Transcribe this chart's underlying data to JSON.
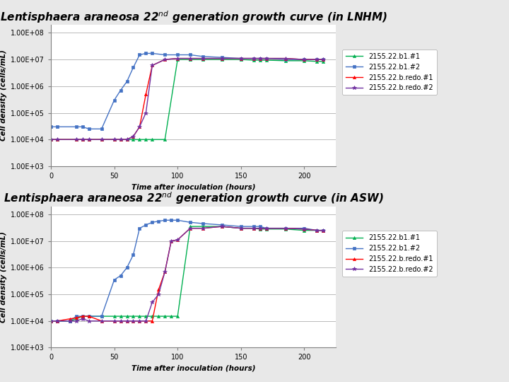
{
  "title1": "Lentisphaera araneosa 22nd generation growth curve (in LNHM)",
  "title2": "Lentisphaera araneosa 22nd generation growth curve (in ASW)",
  "xlabel": "Time after inoculation (hours)",
  "ylabel": "Cell density (cells/mL)",
  "legend_labels": [
    "2155.22.b1.#1",
    "2155.22.b1.#2",
    "2155.22.b.redo.#1",
    "2155.22.b.redo.#2"
  ],
  "colors": [
    "#00b050",
    "#4472c4",
    "#ff0000",
    "#7030a0"
  ],
  "markers": [
    "^",
    "s",
    "^",
    "*"
  ],
  "markersize": [
    3,
    3,
    3,
    4
  ],
  "lnhm": {
    "time": [
      0,
      5,
      20,
      25,
      30,
      40,
      50,
      55,
      60,
      65,
      70,
      75,
      80,
      90,
      100,
      110,
      120,
      135,
      150,
      160,
      165,
      170,
      185,
      200,
      210,
      215
    ],
    "s1": [
      10000.0,
      10000.0,
      10000.0,
      10000.0,
      10000.0,
      10000.0,
      10000.0,
      10000.0,
      10000.0,
      10000.0,
      10000.0,
      10000.0,
      10000.0,
      10000.0,
      10000000.0,
      10000000.0,
      10000000.0,
      10000000.0,
      10000000.0,
      9500000.0,
      9500000.0,
      9500000.0,
      9000000.0,
      9000000.0,
      8500000.0,
      8500000.0
    ],
    "s2": [
      30000.0,
      30000.0,
      30000.0,
      30000.0,
      25000.0,
      25000.0,
      300000.0,
      700000.0,
      1500000.0,
      5000000.0,
      15000000.0,
      17000000.0,
      17000000.0,
      15000000.0,
      15000000.0,
      15000000.0,
      13000000.0,
      12000000.0,
      11000000.0,
      11000000.0,
      11000000.0,
      11000000.0,
      10000000.0,
      10000000.0,
      10000000.0,
      10000000.0
    ],
    "s3": [
      10000.0,
      10000.0,
      10000.0,
      10000.0,
      10000.0,
      10000.0,
      10000.0,
      10000.0,
      10000.0,
      13000.0,
      30000.0,
      500000.0,
      6000000.0,
      10000000.0,
      11000000.0,
      11000000.0,
      11000000.0,
      11000000.0,
      11000000.0,
      11000000.0,
      11000000.0,
      11000000.0,
      11000000.0,
      10000000.0,
      10000000.0,
      10000000.0
    ],
    "s4": [
      10000.0,
      10000.0,
      10000.0,
      10000.0,
      10000.0,
      10000.0,
      10000.0,
      10000.0,
      10000.0,
      13000.0,
      30000.0,
      100000.0,
      6000000.0,
      10000000.0,
      11000000.0,
      11000000.0,
      11000000.0,
      11000000.0,
      11000000.0,
      11000000.0,
      11000000.0,
      11000000.0,
      11000000.0,
      10000000.0,
      10000000.0,
      10000000.0
    ]
  },
  "asw": {
    "time": [
      0,
      5,
      15,
      20,
      25,
      30,
      40,
      50,
      55,
      60,
      65,
      70,
      75,
      80,
      85,
      90,
      95,
      100,
      110,
      120,
      135,
      150,
      160,
      165,
      170,
      185,
      200,
      210,
      215
    ],
    "s1": [
      10000.0,
      10000.0,
      10000.0,
      12000.0,
      15000.0,
      15000.0,
      15000.0,
      15000.0,
      15000.0,
      15000.0,
      15000.0,
      15000.0,
      15000.0,
      15000.0,
      15000.0,
      15000.0,
      15000.0,
      15000.0,
      35000000.0,
      35000000.0,
      35000000.0,
      30000000.0,
      30000000.0,
      28000000.0,
      28000000.0,
      28000000.0,
      25000000.0,
      25000000.0,
      25000000.0
    ],
    "s2": [
      10000.0,
      10000.0,
      10000.0,
      15000.0,
      15000.0,
      15000.0,
      15000.0,
      350000.0,
      500000.0,
      1000000.0,
      3000000.0,
      30000000.0,
      40000000.0,
      50000000.0,
      55000000.0,
      60000000.0,
      60000000.0,
      60000000.0,
      50000000.0,
      45000000.0,
      40000000.0,
      35000000.0,
      35000000.0,
      35000000.0,
      30000000.0,
      30000000.0,
      30000000.0,
      25000000.0,
      25000000.0
    ],
    "s3": [
      10000.0,
      10000.0,
      12000.0,
      13000.0,
      15000.0,
      15000.0,
      10000.0,
      10000.0,
      10000.0,
      10000.0,
      10000.0,
      10000.0,
      10000.0,
      10000.0,
      150000.0,
      700000.0,
      10000000.0,
      11000000.0,
      30000000.0,
      30000000.0,
      35000000.0,
      30000000.0,
      30000000.0,
      30000000.0,
      30000000.0,
      30000000.0,
      28000000.0,
      25000000.0,
      25000000.0
    ],
    "s4": [
      10000.0,
      10000.0,
      10000.0,
      10000.0,
      12000.0,
      10000.0,
      10000.0,
      10000.0,
      10000.0,
      10000.0,
      10000.0,
      10000.0,
      10000.0,
      50000.0,
      100000.0,
      700000.0,
      10000000.0,
      11000000.0,
      30000000.0,
      30000000.0,
      35000000.0,
      30000000.0,
      30000000.0,
      30000000.0,
      30000000.0,
      30000000.0,
      28000000.0,
      25000000.0,
      25000000.0
    ]
  },
  "bg_color": "#e8e8e8",
  "plot_bg": "#ffffff",
  "grid_color": "#b0b0b0",
  "spine_color": "#808080",
  "title_fontsize": 11,
  "axis_label_fontsize": 7.5,
  "tick_fontsize": 7,
  "legend_fontsize": 7,
  "ylim": [
    1000.0,
    200000000.0
  ],
  "xlim": [
    0,
    225
  ],
  "xticks": [
    0,
    50,
    100,
    150,
    200
  ]
}
